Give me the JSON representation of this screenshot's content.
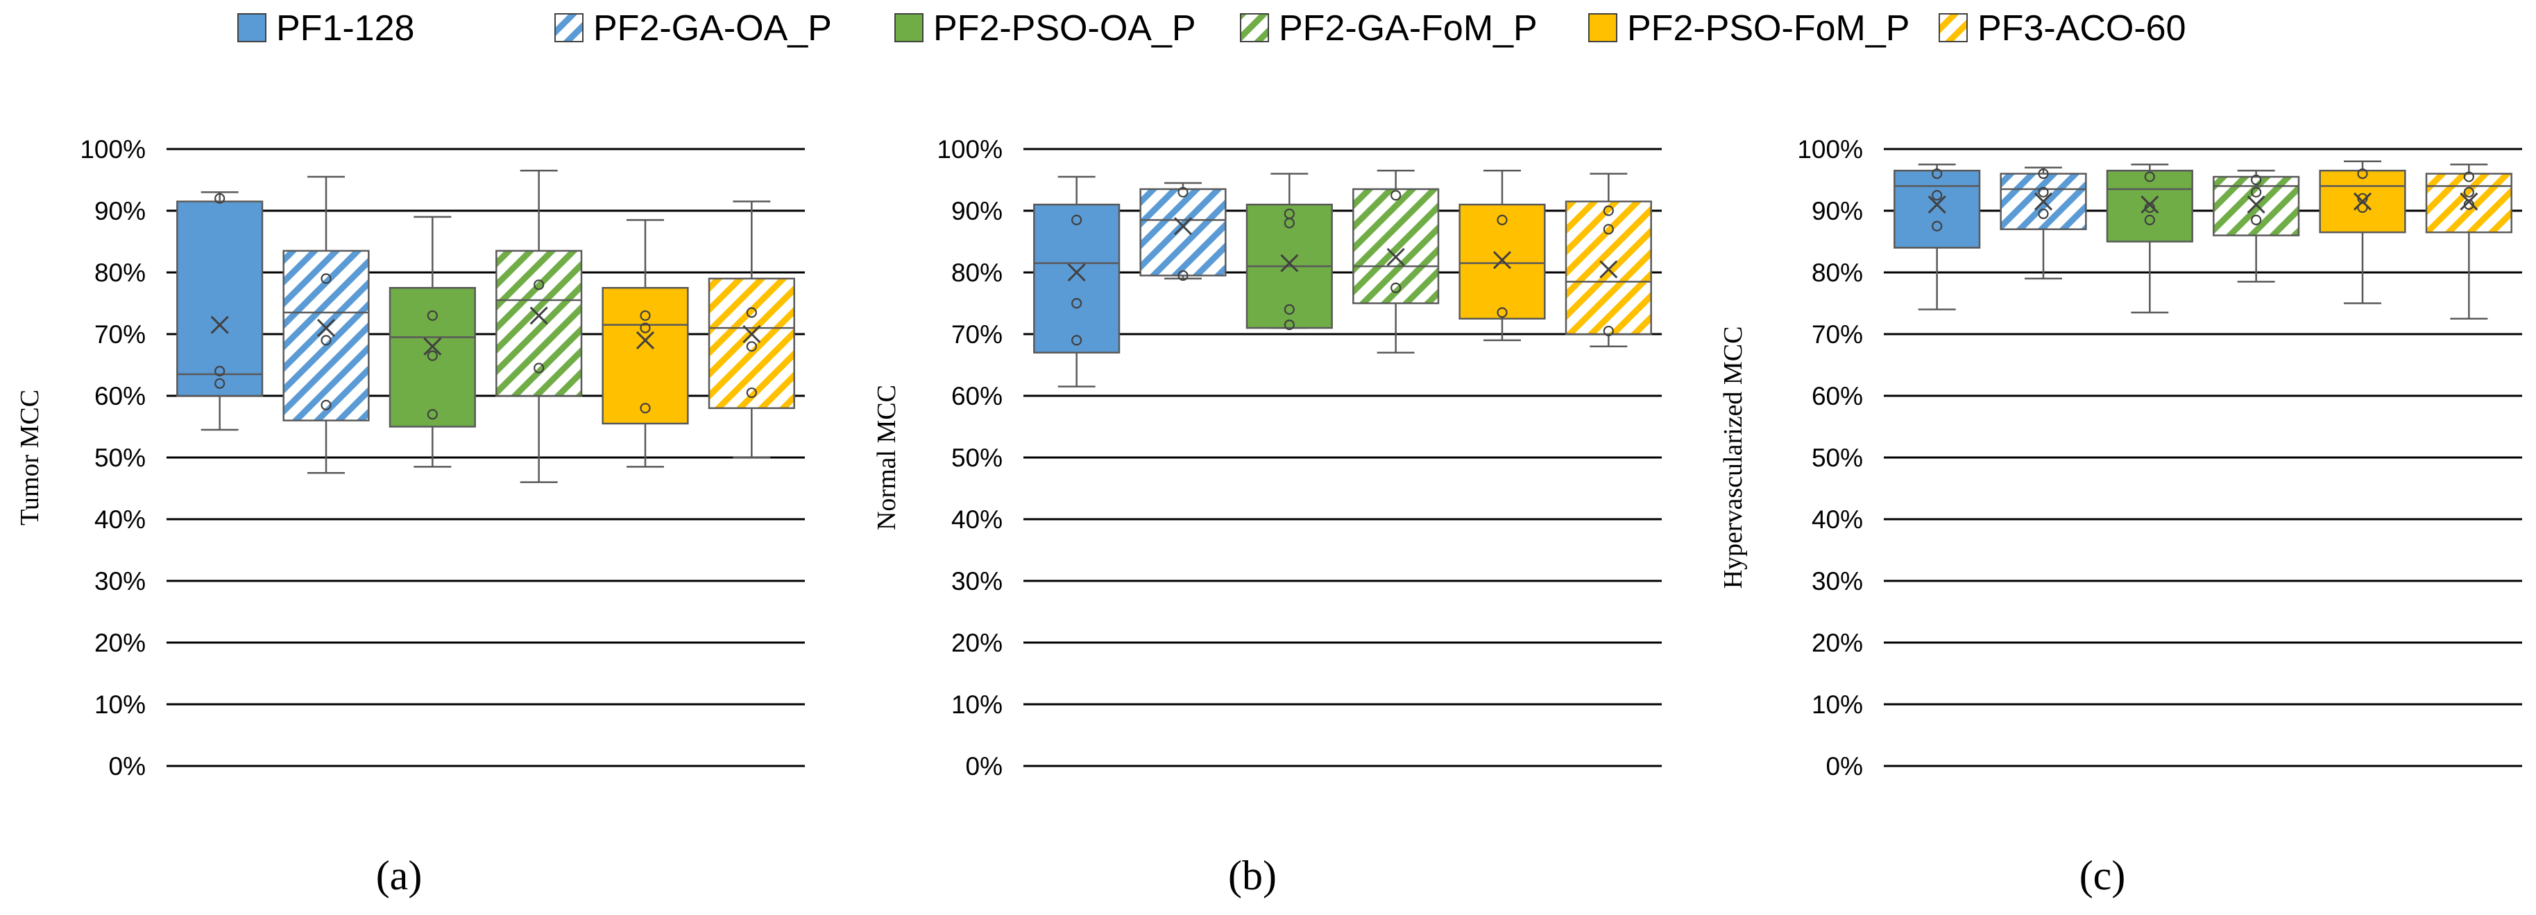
{
  "legend": [
    {
      "name": "PF1-128",
      "color": "#5B9BD5",
      "pattern": "solid"
    },
    {
      "name": "PF2-GA-OA_P",
      "color": "#5B9BD5",
      "pattern": "hatch"
    },
    {
      "name": "PF2-PSO-OA_P",
      "color": "#70AD47",
      "pattern": "solid"
    },
    {
      "name": "PF2-GA-FoM_P",
      "color": "#70AD47",
      "pattern": "hatch"
    },
    {
      "name": "PF2-PSO-FoM_P",
      "color": "#FFC000",
      "pattern": "solid"
    },
    {
      "name": "PF3-ACO-60",
      "color": "#FFC000",
      "pattern": "hatch"
    }
  ],
  "chart_data": [
    {
      "type": "box",
      "panel_label": "(a)",
      "ylabel": "Tumor MCC",
      "ylim": [
        0,
        100
      ],
      "yticks": [
        "0%",
        "10%",
        "20%",
        "30%",
        "40%",
        "50%",
        "60%",
        "70%",
        "80%",
        "90%",
        "100%"
      ],
      "grid": true,
      "series": [
        {
          "name": "PF1-128",
          "min": 54.5,
          "q1": 60,
          "median": 63.5,
          "q3": 91.5,
          "max": 93,
          "mean": 71.5,
          "points": [
            62,
            64,
            92
          ]
        },
        {
          "name": "PF2-GA-OA_P",
          "min": 47.5,
          "q1": 56,
          "median": 73.5,
          "q3": 83.5,
          "max": 95.5,
          "mean": 71,
          "points": [
            58.5,
            69,
            79
          ]
        },
        {
          "name": "PF2-PSO-OA_P",
          "min": 48.5,
          "q1": 55,
          "median": 69.5,
          "q3": 77.5,
          "max": 89,
          "mean": 68,
          "points": [
            57,
            66.5,
            73
          ]
        },
        {
          "name": "PF2-GA-FoM_P",
          "min": 46,
          "q1": 60,
          "median": 75.5,
          "q3": 83.5,
          "max": 96.5,
          "mean": 73,
          "points": [
            64.5,
            78
          ]
        },
        {
          "name": "PF2-PSO-FoM_P",
          "min": 48.5,
          "q1": 55.5,
          "median": 71.5,
          "q3": 77.5,
          "max": 88.5,
          "mean": 69,
          "points": [
            58,
            71,
            73
          ]
        },
        {
          "name": "PF3-ACO-60",
          "min": 50,
          "q1": 58,
          "median": 71,
          "q3": 79,
          "max": 91.5,
          "mean": 70,
          "points": [
            60.5,
            68,
            73.5
          ]
        }
      ]
    },
    {
      "type": "box",
      "panel_label": "(b)",
      "ylabel": "Normal MCC",
      "ylim": [
        0,
        100
      ],
      "yticks": [
        "0%",
        "10%",
        "20%",
        "30%",
        "40%",
        "50%",
        "60%",
        "70%",
        "80%",
        "90%",
        "100%"
      ],
      "grid": true,
      "series": [
        {
          "name": "PF1-128",
          "min": 61.5,
          "q1": 67,
          "median": 81.5,
          "q3": 91,
          "max": 95.5,
          "mean": 80,
          "points": [
            69,
            75,
            88.5
          ]
        },
        {
          "name": "PF2-GA-OA_P",
          "min": 79,
          "q1": 79.5,
          "median": 88.5,
          "q3": 93.5,
          "max": 94.5,
          "mean": 87.5,
          "points": [
            79.5,
            93
          ]
        },
        {
          "name": "PF2-PSO-OA_P",
          "min": 71,
          "q1": 71,
          "median": 81,
          "q3": 91,
          "max": 96,
          "mean": 81.5,
          "points": [
            71.5,
            74,
            88,
            89.5
          ]
        },
        {
          "name": "PF2-GA-FoM_P",
          "min": 67,
          "q1": 75,
          "median": 81,
          "q3": 93.5,
          "max": 96.5,
          "mean": 82.5,
          "points": [
            77.5,
            92.5
          ]
        },
        {
          "name": "PF2-PSO-FoM_P",
          "min": 69,
          "q1": 72.5,
          "median": 81.5,
          "q3": 91,
          "max": 96.5,
          "mean": 82,
          "points": [
            73.5,
            88.5
          ]
        },
        {
          "name": "PF3-ACO-60",
          "min": 68,
          "q1": 70,
          "median": 78.5,
          "q3": 91.5,
          "max": 96,
          "mean": 80.5,
          "points": [
            70.5,
            87,
            90
          ]
        }
      ]
    },
    {
      "type": "box",
      "panel_label": "(c)",
      "ylabel": "Hypervascularized  MCC",
      "ylim": [
        0,
        100
      ],
      "yticks": [
        "0%",
        "10%",
        "20%",
        "30%",
        "40%",
        "50%",
        "60%",
        "70%",
        "80%",
        "90%",
        "100%"
      ],
      "grid": true,
      "series": [
        {
          "name": "PF1-128",
          "min": 74,
          "q1": 84,
          "median": 94,
          "q3": 96.5,
          "max": 97.5,
          "mean": 91,
          "points": [
            87.5,
            92.5,
            96
          ]
        },
        {
          "name": "PF2-GA-OA_P",
          "min": 79,
          "q1": 87,
          "median": 93.5,
          "q3": 96,
          "max": 97,
          "mean": 91.5,
          "points": [
            89.5,
            93,
            96
          ]
        },
        {
          "name": "PF2-PSO-OA_P",
          "min": 73.5,
          "q1": 85,
          "median": 93.5,
          "q3": 96.5,
          "max": 97.5,
          "mean": 91,
          "points": [
            88.5,
            90.5,
            95.5
          ]
        },
        {
          "name": "PF2-GA-FoM_P",
          "min": 78.5,
          "q1": 86,
          "median": 94,
          "q3": 95.5,
          "max": 96.5,
          "mean": 91,
          "points": [
            88.5,
            93,
            95
          ]
        },
        {
          "name": "PF2-PSO-FoM_P",
          "min": 75,
          "q1": 86.5,
          "median": 94,
          "q3": 96.5,
          "max": 98,
          "mean": 91.5,
          "points": [
            90.5,
            92,
            96
          ]
        },
        {
          "name": "PF3-ACO-60",
          "min": 72.5,
          "q1": 86.5,
          "median": 94,
          "q3": 96,
          "max": 97.5,
          "mean": 91.5,
          "points": [
            91,
            93,
            95.5
          ]
        }
      ]
    }
  ]
}
